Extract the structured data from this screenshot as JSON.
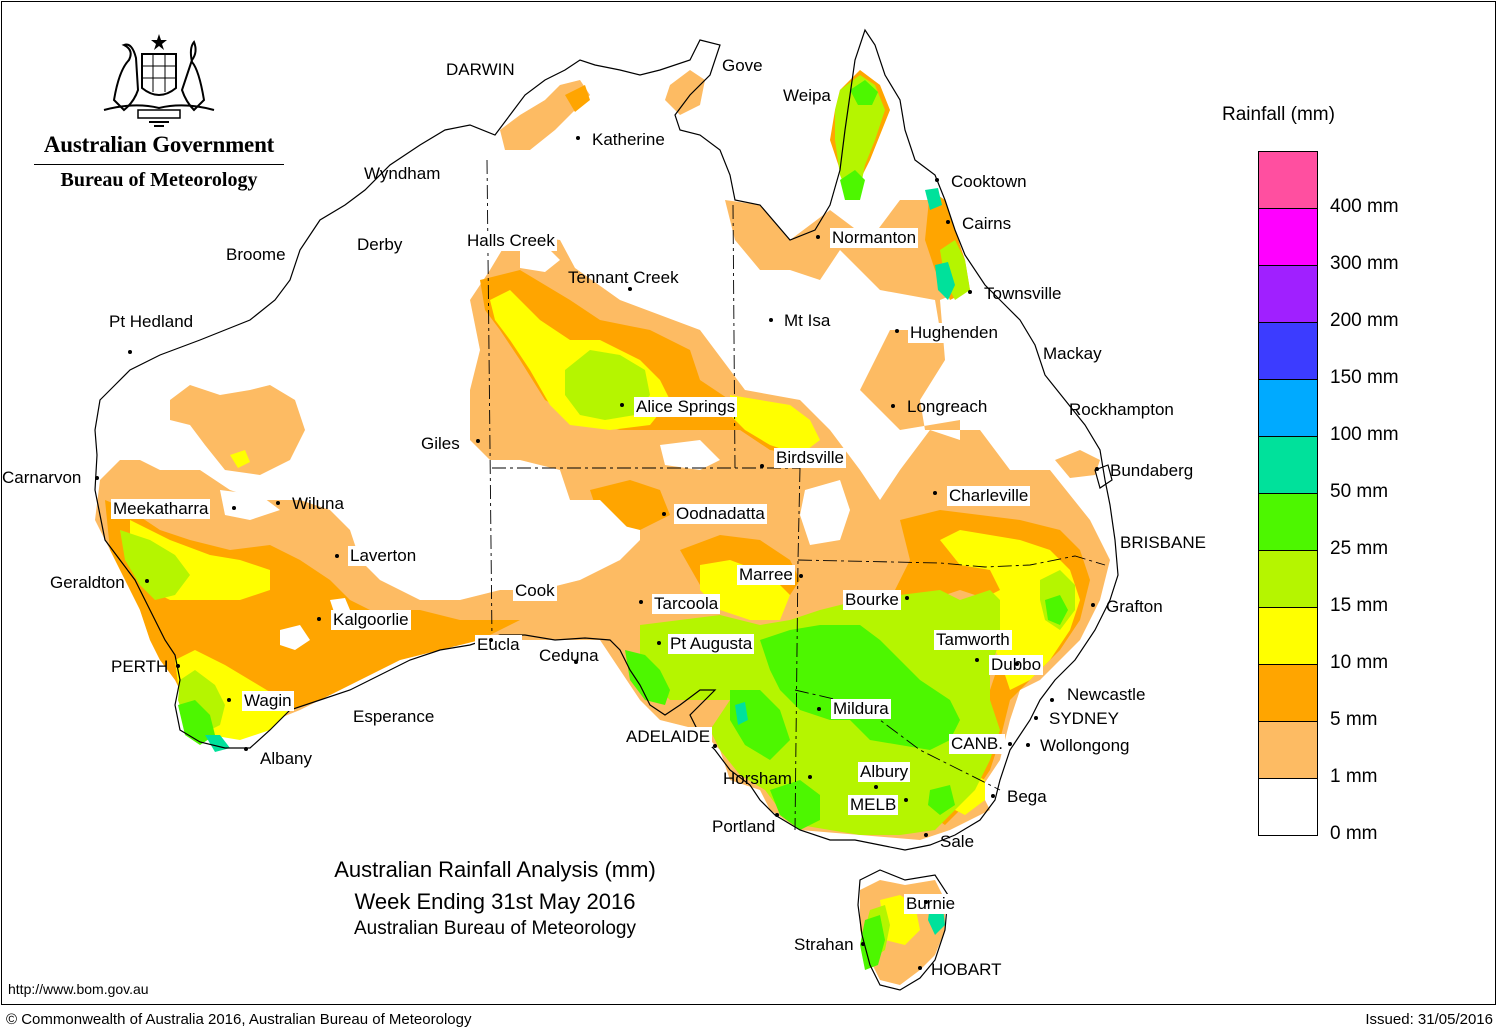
{
  "header": {
    "agency": "Australian Government",
    "bureau": "Bureau of Meteorology",
    "crest_icon": "coat-of-arms-icon"
  },
  "title": {
    "line1": "Australian Rainfall Analysis (mm)",
    "line2": "Week Ending 31st May 2016",
    "line3": "Australian Bureau of Meteorology"
  },
  "legend": {
    "title": "Rainfall (mm)",
    "bins": [
      {
        "label": "0 mm",
        "color": "#ffffff"
      },
      {
        "label": "1 mm",
        "color": "#fdbb63"
      },
      {
        "label": "5 mm",
        "color": "#ffa500"
      },
      {
        "label": "10 mm",
        "color": "#ffff00"
      },
      {
        "label": "15 mm",
        "color": "#b5f500"
      },
      {
        "label": "25 mm",
        "color": "#4df700"
      },
      {
        "label": "50 mm",
        "color": "#00e19b"
      },
      {
        "label": "100 mm",
        "color": "#00aaff"
      },
      {
        "label": "150 mm",
        "color": "#3c3cff"
      },
      {
        "label": "200 mm",
        "color": "#a020ff"
      },
      {
        "label": "300 mm",
        "color": "#ff00ff"
      },
      {
        "label": "400 mm",
        "color": "#ff4fa0"
      }
    ]
  },
  "places": [
    {
      "name": "DARWIN"
    },
    {
      "name": "Gove"
    },
    {
      "name": "Weipa"
    },
    {
      "name": "Katherine"
    },
    {
      "name": "Wyndham"
    },
    {
      "name": "Cooktown"
    },
    {
      "name": "Cairns"
    },
    {
      "name": "Normanton"
    },
    {
      "name": "Broome"
    },
    {
      "name": "Derby"
    },
    {
      "name": "Halls Creek"
    },
    {
      "name": "Tennant Creek"
    },
    {
      "name": "Townsville"
    },
    {
      "name": "Pt Hedland"
    },
    {
      "name": "Mt Isa"
    },
    {
      "name": "Hughenden"
    },
    {
      "name": "Mackay"
    },
    {
      "name": "Alice Springs"
    },
    {
      "name": "Longreach"
    },
    {
      "name": "Rockhampton"
    },
    {
      "name": "Giles"
    },
    {
      "name": "Birdsville"
    },
    {
      "name": "Bundaberg"
    },
    {
      "name": "Carnarvon"
    },
    {
      "name": "Charleville"
    },
    {
      "name": "Meekatharra"
    },
    {
      "name": "Wiluna"
    },
    {
      "name": "Oodnadatta"
    },
    {
      "name": "BRISBANE"
    },
    {
      "name": "Laverton"
    },
    {
      "name": "Marree"
    },
    {
      "name": "Geraldton"
    },
    {
      "name": "Cook"
    },
    {
      "name": "Bourke"
    },
    {
      "name": "Tarcoola"
    },
    {
      "name": "Grafton"
    },
    {
      "name": "Kalgoorlie"
    },
    {
      "name": "Tamworth"
    },
    {
      "name": "Eucla"
    },
    {
      "name": "Pt Augusta"
    },
    {
      "name": "Ceduna"
    },
    {
      "name": "PERTH"
    },
    {
      "name": "Dubbo"
    },
    {
      "name": "Newcastle"
    },
    {
      "name": "Wagin"
    },
    {
      "name": "Mildura"
    },
    {
      "name": "SYDNEY"
    },
    {
      "name": "Esperance"
    },
    {
      "name": "ADELAIDE"
    },
    {
      "name": "CANB."
    },
    {
      "name": "Wollongong"
    },
    {
      "name": "Albany"
    },
    {
      "name": "Albury"
    },
    {
      "name": "Horsham"
    },
    {
      "name": "Bega"
    },
    {
      "name": "MELB"
    },
    {
      "name": "Portland"
    },
    {
      "name": "Sale"
    },
    {
      "name": "Burnie"
    },
    {
      "name": "Strahan"
    },
    {
      "name": "HOBART"
    }
  ],
  "footer": {
    "url": "http://www.bom.gov.au",
    "copyright": "© Commonwealth of Australia 2016, Australian Bureau of Meteorology",
    "issued": "Issued: 31/05/2016"
  }
}
